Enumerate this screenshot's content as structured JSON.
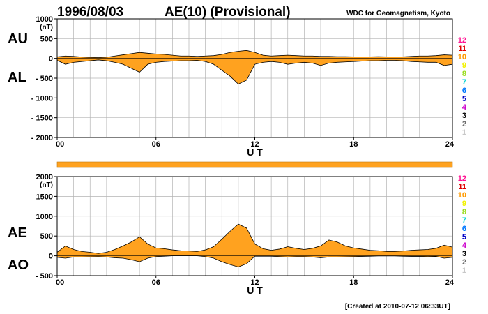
{
  "header": {
    "date": "1996/08/03",
    "title": "AE(10) (Provisional)",
    "source": "WDC for Geomagnetism, Kyoto"
  },
  "footer": {
    "created": "[Created at 2010-07-12 06:33UT]"
  },
  "colors": {
    "fill": "#FFA21F",
    "grid": "#b4b4b4",
    "axis": "#000000"
  },
  "chart_data": [
    {
      "type": "area",
      "series_labels": [
        "AU",
        "AL"
      ],
      "unit": "(nT)",
      "xlabel": "U T",
      "ylim": [
        -2000,
        1000
      ],
      "yticks": [
        1000,
        500,
        0,
        -500,
        -1000,
        -1500,
        -2000
      ],
      "ytick_labels": [
        "1000",
        "500",
        "0",
        "- 500",
        "- 1000",
        "- 1500",
        "- 2000"
      ],
      "xlim": [
        0,
        24
      ],
      "xticks": [
        0,
        6,
        12,
        18,
        24
      ],
      "xtick_labels": [
        "00",
        "06",
        "12",
        "18",
        "24"
      ],
      "hours": [
        0,
        0.5,
        1,
        1.5,
        2,
        2.5,
        3,
        3.5,
        4,
        4.5,
        5,
        5.5,
        6,
        6.5,
        7,
        7.5,
        8,
        8.5,
        9,
        9.5,
        10,
        10.5,
        11,
        11.5,
        12,
        12.5,
        13,
        13.5,
        14,
        14.5,
        15,
        15.5,
        16,
        16.5,
        17,
        17.5,
        18,
        18.5,
        19,
        19.5,
        20,
        20.5,
        21,
        21.5,
        22,
        22.5,
        23,
        23.5,
        24
      ],
      "upper": [
        40,
        60,
        50,
        35,
        25,
        20,
        30,
        60,
        90,
        120,
        150,
        130,
        110,
        100,
        80,
        60,
        60,
        50,
        60,
        70,
        100,
        150,
        180,
        200,
        150,
        80,
        60,
        70,
        80,
        70,
        60,
        60,
        50,
        50,
        45,
        45,
        40,
        40,
        40,
        45,
        40,
        40,
        40,
        50,
        60,
        60,
        70,
        90,
        80
      ],
      "lower": [
        -50,
        -150,
        -100,
        -80,
        -60,
        -40,
        -60,
        -100,
        -150,
        -250,
        -350,
        -150,
        -100,
        -80,
        -70,
        -60,
        -60,
        -50,
        -80,
        -150,
        -300,
        -450,
        -650,
        -550,
        -150,
        -100,
        -80,
        -100,
        -150,
        -120,
        -100,
        -120,
        -180,
        -120,
        -100,
        -90,
        -80,
        -70,
        -60,
        -60,
        -50,
        -50,
        -60,
        -80,
        -90,
        -100,
        -100,
        -180,
        -150
      ]
    },
    {
      "type": "area",
      "series_labels": [
        "AE",
        "AO"
      ],
      "unit": "(nT)",
      "xlabel": "U T",
      "ylim": [
        -500,
        2000
      ],
      "yticks": [
        2000,
        1500,
        1000,
        500,
        0,
        -500
      ],
      "ytick_labels": [
        "2000",
        "1500",
        "1000",
        "500",
        "0",
        "- 500"
      ],
      "xlim": [
        0,
        24
      ],
      "xticks": [
        0,
        6,
        12,
        18,
        24
      ],
      "xtick_labels": [
        "00",
        "06",
        "12",
        "18",
        "24"
      ],
      "hours": [
        0,
        0.5,
        1,
        1.5,
        2,
        2.5,
        3,
        3.5,
        4,
        4.5,
        5,
        5.5,
        6,
        6.5,
        7,
        7.5,
        8,
        8.5,
        9,
        9.5,
        10,
        10.5,
        11,
        11.5,
        12,
        12.5,
        13,
        13.5,
        14,
        14.5,
        15,
        15.5,
        16,
        16.5,
        17,
        17.5,
        18,
        18.5,
        19,
        19.5,
        20,
        20.5,
        21,
        21.5,
        22,
        22.5,
        23,
        23.5,
        24
      ],
      "upper": [
        90,
        250,
        160,
        110,
        90,
        60,
        90,
        160,
        250,
        350,
        480,
        300,
        200,
        180,
        150,
        130,
        120,
        110,
        150,
        230,
        420,
        620,
        800,
        700,
        300,
        180,
        140,
        170,
        230,
        190,
        160,
        190,
        250,
        400,
        350,
        250,
        200,
        170,
        140,
        130,
        110,
        110,
        120,
        140,
        150,
        160,
        190,
        270,
        220
      ],
      "lower": [
        -40,
        -60,
        -30,
        -30,
        -25,
        -20,
        -30,
        -50,
        -60,
        -100,
        -150,
        -60,
        -20,
        -10,
        0,
        0,
        0,
        0,
        -20,
        -60,
        -150,
        -220,
        -280,
        -200,
        -10,
        -10,
        -10,
        -20,
        -30,
        -20,
        -20,
        -30,
        -50,
        -30,
        -30,
        -25,
        -20,
        -15,
        -10,
        -5,
        -5,
        -5,
        -10,
        -15,
        -15,
        -20,
        -15,
        -60,
        -40
      ]
    }
  ],
  "divider_bar": {
    "color": "#FFA21F"
  },
  "legend": {
    "items": [
      {
        "label": "12",
        "color": "#ff1493"
      },
      {
        "label": "11",
        "color": "#e00000"
      },
      {
        "label": "10",
        "color": "#ff9a00"
      },
      {
        "label": "9",
        "color": "#f2f200"
      },
      {
        "label": "8",
        "color": "#9adc1e"
      },
      {
        "label": "7",
        "color": "#00d2d2"
      },
      {
        "label": "6",
        "color": "#0078ff"
      },
      {
        "label": "5",
        "color": "#0000c8"
      },
      {
        "label": "4",
        "color": "#cc00cc"
      },
      {
        "label": "3",
        "color": "#000000"
      },
      {
        "label": "2",
        "color": "#6e6e6e"
      },
      {
        "label": "1",
        "color": "#c8c8c8"
      }
    ]
  }
}
